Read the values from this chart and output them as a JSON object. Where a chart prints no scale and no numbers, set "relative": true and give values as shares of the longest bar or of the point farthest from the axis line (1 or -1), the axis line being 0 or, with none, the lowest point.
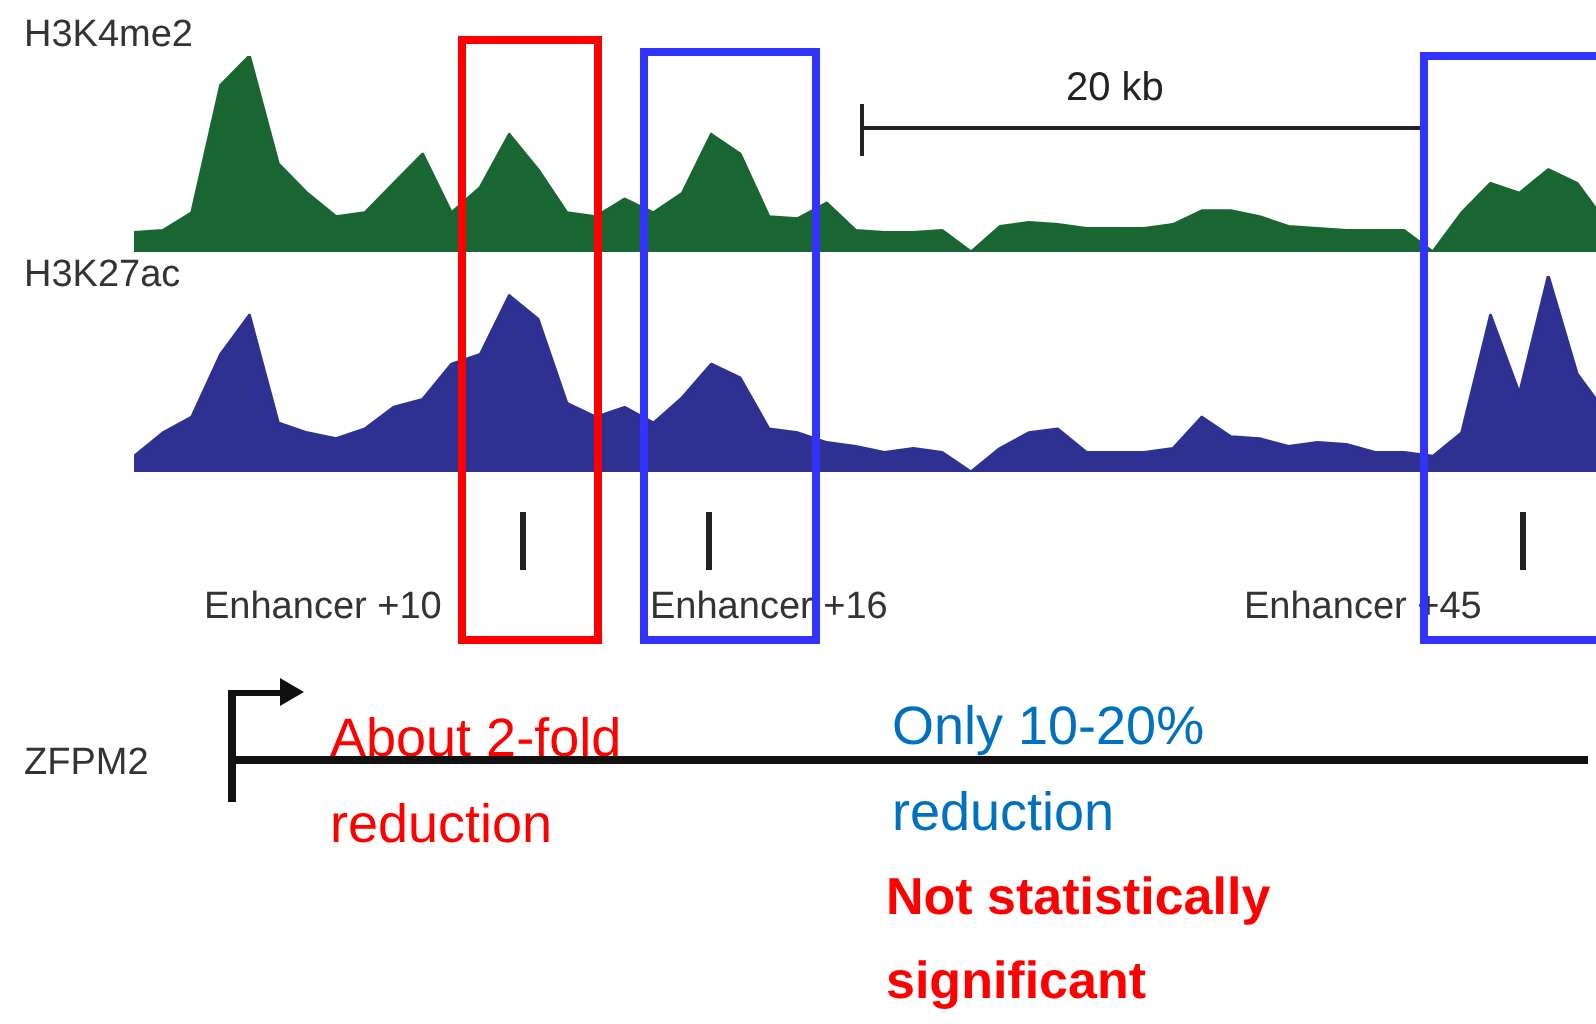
{
  "chart_data": [
    {
      "type": "area",
      "title": "H3K4me2",
      "relative": true,
      "legend": false,
      "tick_labels": false,
      "categories": [
        null,
        null,
        null,
        null,
        null,
        null,
        null,
        null,
        null,
        null,
        null,
        null,
        null,
        null,
        null,
        null,
        null,
        null,
        null,
        null,
        null,
        null,
        null,
        null,
        null,
        null,
        null,
        null,
        null,
        null,
        null,
        null,
        null,
        null,
        null,
        null,
        null,
        null,
        null,
        null,
        null,
        null,
        null,
        null,
        null,
        null,
        null,
        null,
        null,
        null,
        null,
        null
      ],
      "series": [
        {
          "color": "#1a6632",
          "values": [
            0.1,
            0.11,
            0.2,
            0.85,
            1.0,
            0.45,
            0.3,
            0.18,
            0.2,
            0.35,
            0.5,
            0.2,
            0.33,
            0.6,
            0.42,
            0.2,
            0.18,
            0.27,
            0.2,
            0.3,
            0.6,
            0.5,
            0.18,
            0.17,
            0.25,
            0.11,
            0.1,
            0.1,
            0.11,
            0,
            0.13,
            0.15,
            0.14,
            0.12,
            0.12,
            0.12,
            0.14,
            0.21,
            0.21,
            0.18,
            0.13,
            0.12,
            0.11,
            0.11,
            0.11,
            0,
            0.2,
            0.35,
            0.3,
            0.42,
            0.35,
            0.15
          ]
        }
      ],
      "annotations": [
        "20 kb"
      ]
    },
    {
      "type": "area",
      "title": "H3K27ac",
      "relative": true,
      "legend": false,
      "tick_labels": false,
      "categories": [
        null,
        null,
        null,
        null,
        null,
        null,
        null,
        null,
        null,
        null,
        null,
        null,
        null,
        null,
        null,
        null,
        null,
        null,
        null,
        null,
        null,
        null,
        null,
        null,
        null,
        null,
        null,
        null,
        null,
        null,
        null,
        null,
        null,
        null,
        null,
        null,
        null,
        null,
        null,
        null,
        null,
        null,
        null,
        null,
        null,
        null,
        null,
        null,
        null,
        null,
        null,
        null
      ],
      "series": [
        {
          "color": "#2e3192",
          "values": [
            0.08,
            0.2,
            0.28,
            0.6,
            0.8,
            0.25,
            0.2,
            0.17,
            0.22,
            0.33,
            0.37,
            0.55,
            0.6,
            0.9,
            0.78,
            0.35,
            0.28,
            0.33,
            0.25,
            0.38,
            0.55,
            0.48,
            0.22,
            0.2,
            0.15,
            0.13,
            0.1,
            0.12,
            0.1,
            0,
            0.12,
            0.2,
            0.22,
            0.1,
            0.1,
            0.1,
            0.12,
            0.28,
            0.18,
            0.17,
            0.13,
            0.15,
            0.14,
            0.1,
            0.1,
            0.08,
            0.2,
            0.8,
            0.4,
            1.0,
            0.5,
            0.3
          ]
        }
      ],
      "annotations": [
        "Enhancer +10",
        "Enhancer +16",
        "Enhancer +45",
        "ZFPM2",
        "About 2-fold reduction",
        "Only 10-20% reduction",
        "Not statistically significant"
      ]
    }
  ]
}
